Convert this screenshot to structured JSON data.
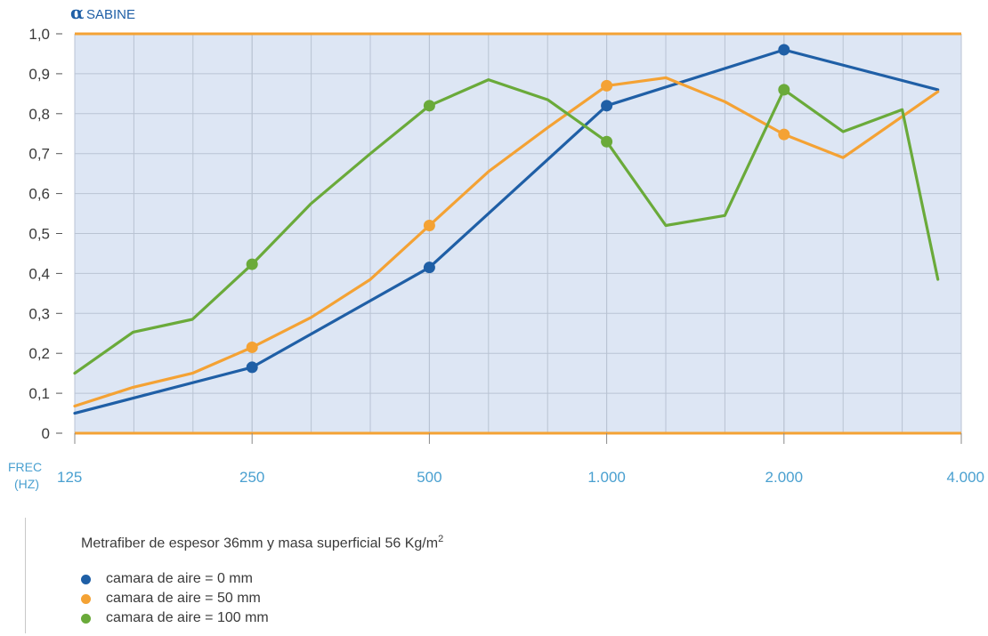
{
  "chart_data": {
    "type": "line",
    "ylabel_symbol": "α",
    "ylabel_text": "SABINE",
    "xlabel_lines": [
      "FREC",
      "(HZ)"
    ],
    "x_tick_labels": [
      "125",
      "250",
      "500",
      "1.000",
      "2.000",
      "4.000"
    ],
    "y_tick_labels": [
      "0",
      "0,1",
      "0,2",
      "0,3",
      "0,4",
      "0,5",
      "0,6",
      "0,7",
      "0,8",
      "0,9",
      "1,0"
    ],
    "y_ticks": [
      0,
      0.1,
      0.2,
      0.3,
      0.4,
      0.5,
      0.6,
      0.7,
      0.8,
      0.9,
      1.0
    ],
    "ylim": [
      0,
      1.0
    ],
    "x_scale": "log2 (octave steps)",
    "x_ticks": [
      125,
      250,
      500,
      1000,
      2000,
      4000
    ],
    "grid": true,
    "legend_placement": "bottom",
    "series": [
      {
        "name": "camara de aire = 0 mm",
        "color": "#1f5fa6",
        "x": [
          125,
          250,
          500,
          1000,
          2000,
          3650
        ],
        "y": [
          0.05,
          0.165,
          0.415,
          0.82,
          0.96,
          0.86
        ],
        "markers": [
          false,
          true,
          true,
          true,
          true,
          false
        ]
      },
      {
        "name": "camara de aire = 50 mm",
        "color": "#f4a234",
        "x": [
          125,
          157,
          198,
          250,
          315,
          397,
          500,
          630,
          794,
          1000,
          1260,
          1587,
          2000,
          2520,
          3650
        ],
        "y": [
          0.068,
          0.115,
          0.15,
          0.215,
          0.29,
          0.385,
          0.52,
          0.655,
          0.765,
          0.87,
          0.89,
          0.83,
          0.748,
          0.69,
          0.855
        ],
        "markers": [
          false,
          false,
          false,
          true,
          false,
          false,
          true,
          false,
          false,
          true,
          false,
          false,
          true,
          false,
          false
        ]
      },
      {
        "name": "camara de aire = 100 mm",
        "color": "#6aaa3a",
        "x": [
          125,
          157,
          198,
          250,
          315,
          397,
          500,
          630,
          794,
          1000,
          1260,
          1587,
          2000,
          2520,
          3175,
          3650
        ],
        "y": [
          0.15,
          0.253,
          0.285,
          0.423,
          0.575,
          0.7,
          0.82,
          0.885,
          0.835,
          0.73,
          0.52,
          0.545,
          0.86,
          0.755,
          0.81,
          0.385
        ],
        "markers": [
          false,
          false,
          false,
          true,
          false,
          false,
          true,
          false,
          false,
          true,
          false,
          false,
          true,
          false,
          false,
          false
        ]
      }
    ]
  },
  "legend": {
    "title": "Metrafiber de espesor 36mm y masa superficial 56 Kg/m",
    "title_sup": "2",
    "items": [
      {
        "label": "camara de aire = 0 mm",
        "color": "#1f5fa6"
      },
      {
        "label": "camara de aire = 50 mm",
        "color": "#f4a234"
      },
      {
        "label": "camara de aire = 100 mm",
        "color": "#6aaa3a"
      }
    ]
  }
}
